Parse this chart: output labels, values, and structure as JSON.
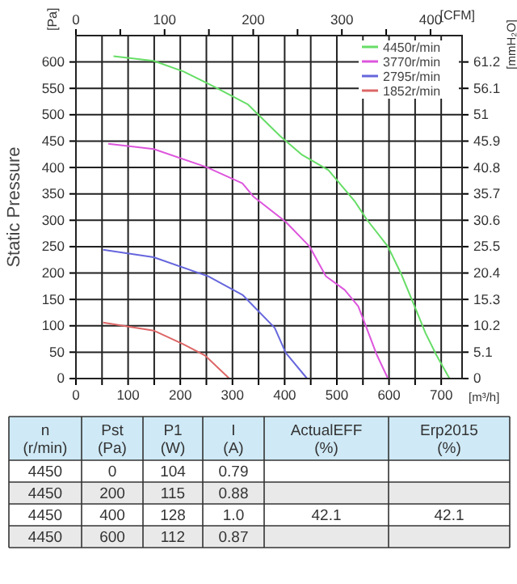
{
  "chart_data": {
    "type": "line",
    "ylabel": "Static Pressure",
    "xlabel": "[m³/h]",
    "x2label": "[CFM]",
    "y2label": "[mmH₂O]",
    "annotations": [
      "[Pa]",
      "n\n(r/min)",
      "Pst\n(Pa)",
      "P1\n(W)",
      "I\n(A)",
      "ActualEFF\n(%)",
      "Erp2015\n(%)",
      "4450",
      "0",
      "104",
      "0.79",
      "4450",
      "200",
      "115",
      "0.88",
      "4450",
      "400",
      "128",
      "1.0",
      "4450",
      "600",
      "112",
      "0.87",
      "42.1",
      "42.1"
    ],
    "xlim": [
      0,
      740
    ],
    "xticks": [
      0,
      {
        "value": 50,
        "label": null
      },
      100,
      {
        "value": 150,
        "label": null
      },
      200,
      {
        "value": 250,
        "label": null
      },
      300,
      {
        "value": 350,
        "label": null
      },
      400,
      {
        "value": 450,
        "label": null
      },
      500,
      {
        "value": 550,
        "label": null
      },
      600,
      {
        "value": 650,
        "label": null
      },
      700
    ],
    "x2lim": [
      0,
      435.6
    ],
    "x2ticks": [
      0,
      {
        "value": 50,
        "label": null
      },
      100,
      {
        "value": 150,
        "label": null
      },
      200,
      {
        "value": 250,
        "label": null
      },
      300,
      {
        "value": 350,
        "label": null
      },
      400
    ],
    "ylim": [
      0,
      650
    ],
    "yticks": [
      0,
      50,
      100,
      150,
      200,
      250,
      300,
      350,
      400,
      450,
      500,
      550,
      600
    ],
    "y2lim": [
      0,
      66.3
    ],
    "y2ticks": [
      0,
      5.1,
      10.2,
      15.3,
      20.4,
      25.5,
      30.6,
      35.7,
      40.8,
      45.9,
      51,
      56.1,
      61.2
    ],
    "grid": true,
    "legend": "top right",
    "marker": "none",
    "line_style": "solid",
    "series": [
      {
        "name": "4450r/min",
        "color": "#66dd66",
        "x": [
          72,
          149,
          206,
          267,
          329,
          391,
          432,
          484,
          535,
          557,
          598,
          623,
          649,
          670,
          691,
          716
        ],
        "values": [
          611,
          602,
          582,
          552,
          520,
          460,
          425,
          395,
          335,
          302,
          250,
          199,
          137,
          86,
          44,
          0
        ]
      },
      {
        "name": "3770r/min",
        "color": "#dd55dd",
        "x": [
          62,
          149,
          252,
          319,
          340,
          402,
          448,
          479,
          515,
          541,
          557,
          577,
          598
        ],
        "values": [
          445,
          435,
          400,
          370,
          345,
          297,
          250,
          194,
          168,
          137,
          96,
          44,
          0
        ]
      },
      {
        "name": "2795r/min",
        "color": "#6666dd",
        "x": [
          52,
          149,
          253,
          320,
          381,
          402,
          443
        ],
        "values": [
          244,
          230,
          194,
          158,
          96,
          49,
          0
        ]
      },
      {
        "name": "1852r/min",
        "color": "#dd6666",
        "x": [
          52,
          149,
          206,
          247,
          294
        ],
        "values": [
          106,
          91,
          65,
          44,
          0
        ]
      }
    ]
  }
}
